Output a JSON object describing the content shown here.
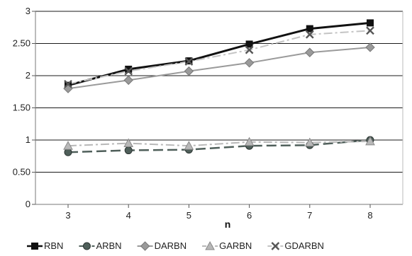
{
  "chart_data": {
    "type": "line",
    "title": "",
    "xlabel": "n",
    "ylabel": "",
    "x": [
      3,
      4,
      5,
      6,
      7,
      8
    ],
    "xticks": [
      "3",
      "4",
      "5",
      "6",
      "7",
      "8"
    ],
    "ylim": [
      0,
      3
    ],
    "yticks": [
      {
        "value": 0,
        "label": "0"
      },
      {
        "value": 0.5,
        "label": "0.50"
      },
      {
        "value": 1,
        "label": "1"
      },
      {
        "value": 1.5,
        "label": "1.50"
      },
      {
        "value": 2,
        "label": "2"
      },
      {
        "value": 2.5,
        "label": "2.50"
      },
      {
        "value": 3,
        "label": "3"
      }
    ],
    "grid": "horizontal",
    "legend_position": "bottom",
    "series": [
      {
        "name": "RBN",
        "values": [
          1.85,
          2.1,
          2.23,
          2.49,
          2.73,
          2.82
        ],
        "color": "#111111",
        "marker": "square",
        "dash": "solid",
        "width": 3
      },
      {
        "name": "ARBN",
        "values": [
          0.81,
          0.84,
          0.85,
          0.91,
          0.92,
          1.0
        ],
        "color": "#4f5f5a",
        "marker": "circle",
        "dash": "dashed",
        "width": 2.5
      },
      {
        "name": "DARBN",
        "values": [
          1.8,
          1.93,
          2.07,
          2.2,
          2.36,
          2.44
        ],
        "color": "#9a9a9a",
        "marker": "diamond",
        "dash": "solid",
        "width": 2
      },
      {
        "name": "GARBN",
        "values": [
          0.91,
          0.95,
          0.91,
          0.97,
          0.96,
          0.98
        ],
        "color": "#b8b8b8",
        "marker": "triangle",
        "dash": "dashdot",
        "width": 2
      },
      {
        "name": "GDARBN",
        "values": [
          1.87,
          2.07,
          2.22,
          2.4,
          2.64,
          2.7
        ],
        "color": "#c4c4c4",
        "marker": "x",
        "dash": "dashdot",
        "width": 2
      }
    ]
  }
}
